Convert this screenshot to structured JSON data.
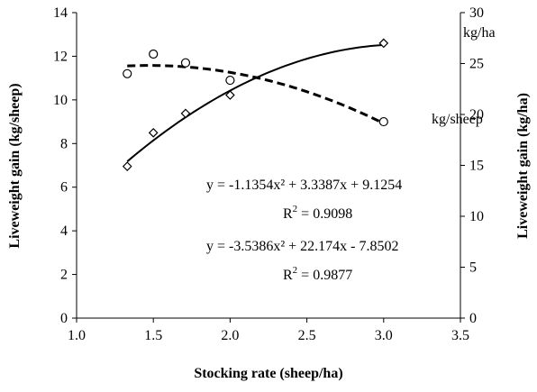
{
  "chart_data": {
    "type": "scatter",
    "xlabel": "Stocking rate (sheep/ha)",
    "ylabel": "Liveweight gain (kg/sheep)",
    "y2label": "Liveweight gain (kg/ha)",
    "xlim": [
      1.0,
      3.5
    ],
    "ylim": [
      0,
      14
    ],
    "y2lim": [
      0,
      30
    ],
    "xticks": [
      "1.0",
      "1.5",
      "2.0",
      "2.5",
      "3.0",
      "3.5"
    ],
    "yticks": [
      "0",
      "2",
      "4",
      "6",
      "8",
      "10",
      "12",
      "14"
    ],
    "y2ticks": [
      "0",
      "5",
      "10",
      "15",
      "20",
      "25",
      "30"
    ],
    "grid": false,
    "series": [
      {
        "name": "kg/sheep",
        "axis": "left",
        "marker": "circle",
        "x": [
          1.33,
          1.5,
          1.71,
          2.0,
          3.0
        ],
        "y": [
          11.2,
          12.1,
          11.7,
          10.9,
          9.0
        ],
        "fit": {
          "type": "quadratic",
          "a": -1.1354,
          "b": 3.3387,
          "c": 9.1254,
          "x_range": [
            1.33,
            3.0
          ],
          "style": "dashed"
        }
      },
      {
        "name": "kg/ha",
        "axis": "right",
        "marker": "diamond",
        "x": [
          1.33,
          1.5,
          1.71,
          2.0,
          3.0
        ],
        "y": [
          14.9,
          18.2,
          20.1,
          21.9,
          27.0
        ],
        "fit": {
          "type": "quadratic",
          "a": -3.5386,
          "b": 22.174,
          "c": -7.8502,
          "x_range": [
            1.33,
            3.0
          ],
          "style": "solid"
        }
      }
    ],
    "annotations": [
      {
        "id": "eq1",
        "text": "y = -1.1354x² + 3.3387x + 9.1254"
      },
      {
        "id": "r1_base",
        "text": "R",
        "sup": "2",
        "tail": " = 0.9098"
      },
      {
        "id": "eq2",
        "text": "y = -3.5386x² + 22.174x - 7.8502"
      },
      {
        "id": "r2_base",
        "text": "R",
        "sup": "2",
        "tail": " = 0.9877"
      }
    ]
  }
}
